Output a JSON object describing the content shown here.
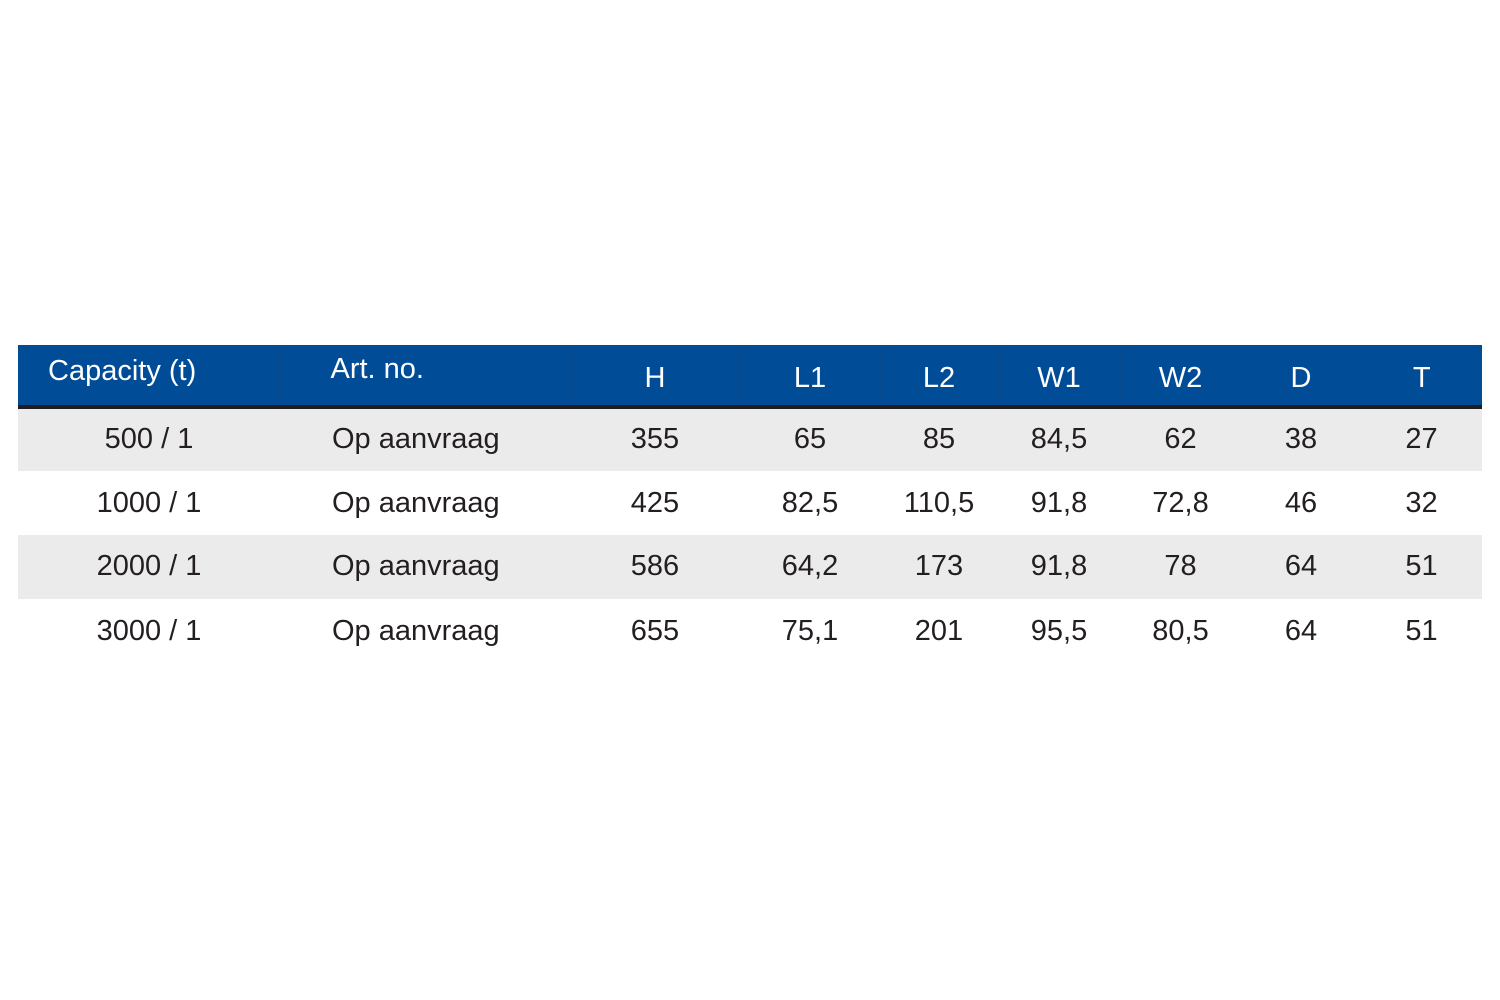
{
  "table": {
    "headers": {
      "capacity": "Capacity (t)",
      "art_no": "Art. no.",
      "h": "H",
      "l1": "L1",
      "l2": "L2",
      "w1": "W1",
      "w2": "W2",
      "d": "D",
      "t": "T"
    },
    "rows": [
      {
        "capacity": "500 / 1",
        "art_no": "Op aanvraag",
        "h": "355",
        "l1": "65",
        "l2": "85",
        "w1": "84,5",
        "w2": "62",
        "d": "38",
        "t": "27"
      },
      {
        "capacity": "1000 / 1",
        "art_no": "Op aanvraag",
        "h": "425",
        "l1": "82,5",
        "l2": "110,5",
        "w1": "91,8",
        "w2": "72,8",
        "d": "46",
        "t": "32"
      },
      {
        "capacity": "2000 / 1",
        "art_no": "Op aanvraag",
        "h": "586",
        "l1": "64,2",
        "l2": "173",
        "w1": "91,8",
        "w2": "78",
        "d": "64",
        "t": "51"
      },
      {
        "capacity": "3000 / 1",
        "art_no": "Op aanvraag",
        "h": "655",
        "l1": "75,1",
        "l2": "201",
        "w1": "95,5",
        "w2": "80,5",
        "d": "64",
        "t": "51"
      }
    ]
  },
  "colors": {
    "header_background": "#004c97",
    "header_text": "#ffffff",
    "stripe": "#ebebeb",
    "body_text": "#231f20"
  }
}
